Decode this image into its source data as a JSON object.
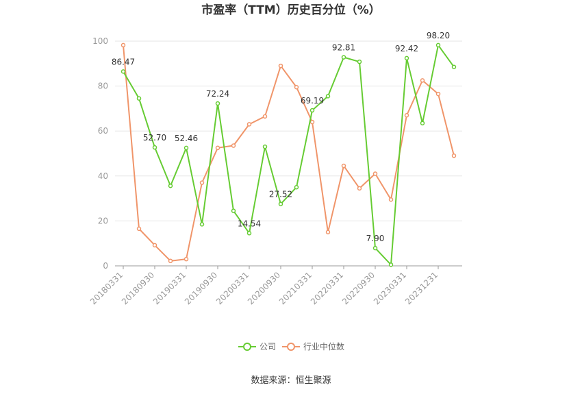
{
  "chart_data": {
    "type": "line",
    "title": "市盈率（TTM）历史百分位（%）",
    "xlabel": "",
    "ylabel": "",
    "ylim": [
      0,
      100
    ],
    "yticks": [
      0,
      20,
      40,
      60,
      80,
      100
    ],
    "grid": true,
    "legend_position": "bottom",
    "x_tick_labels": [
      "20180331",
      "20180930",
      "20190331",
      "20190930",
      "20200331",
      "20200930",
      "20210331",
      "20220331",
      "20220930",
      "20230331",
      "20231231"
    ],
    "x_tick_indices": [
      0,
      2,
      4,
      6,
      8,
      10,
      12,
      14,
      16,
      18,
      20
    ],
    "series": [
      {
        "name": "公司",
        "color": "#66cc33",
        "values": [
          86.47,
          74.5,
          52.7,
          35.6,
          52.46,
          18.5,
          72.24,
          24.5,
          14.54,
          53.0,
          27.52,
          35.0,
          69.19,
          75.5,
          92.81,
          90.8,
          7.9,
          0.5,
          92.42,
          63.5,
          98.2,
          88.5
        ]
      },
      {
        "name": "行业中位数",
        "color": "#f0956a",
        "values": [
          98.2,
          16.5,
          9.2,
          2.2,
          3.0,
          37.0,
          52.5,
          53.5,
          63.0,
          66.5,
          89.0,
          79.5,
          64.0,
          15.0,
          44.5,
          34.5,
          41.0,
          29.5,
          67.0,
          82.5,
          76.5,
          49.0
        ]
      }
    ],
    "data_labels": [
      {
        "index": 0,
        "text": "86.47"
      },
      {
        "index": 2,
        "text": "52.70"
      },
      {
        "index": 4,
        "text": "52.46"
      },
      {
        "index": 6,
        "text": "72.24"
      },
      {
        "index": 8,
        "text": "14.54"
      },
      {
        "index": 10,
        "text": "27.52"
      },
      {
        "index": 12,
        "text": "69.19"
      },
      {
        "index": 14,
        "text": "92.81"
      },
      {
        "index": 16,
        "text": "7.90"
      },
      {
        "index": 18,
        "text": "92.42"
      },
      {
        "index": 20,
        "text": "98.20"
      }
    ]
  },
  "source_text": "数据来源：恒生聚源"
}
